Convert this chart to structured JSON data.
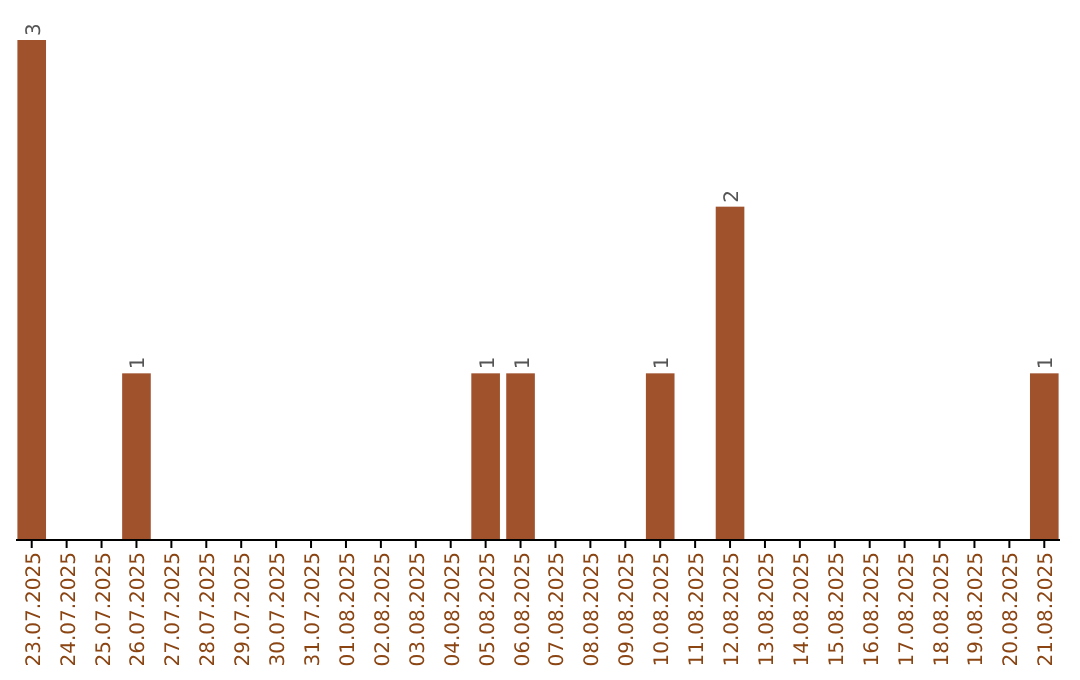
{
  "chart_data": {
    "type": "bar",
    "categories": [
      "23.07.2025",
      "24.07.2025",
      "25.07.2025",
      "26.07.2025",
      "27.07.2025",
      "28.07.2025",
      "29.07.2025",
      "30.07.2025",
      "31.07.2025",
      "01.08.2025",
      "02.08.2025",
      "03.08.2025",
      "04.08.2025",
      "05.08.2025",
      "06.08.2025",
      "07.08.2025",
      "08.08.2025",
      "09.08.2025",
      "10.08.2025",
      "11.08.2025",
      "12.08.2025",
      "13.08.2025",
      "14.08.2025",
      "15.08.2025",
      "16.08.2025",
      "17.08.2025",
      "18.08.2025",
      "19.08.2025",
      "20.08.2025",
      "21.08.2025"
    ],
    "values": [
      3,
      0,
      0,
      1,
      0,
      0,
      0,
      0,
      0,
      0,
      0,
      0,
      0,
      1,
      1,
      0,
      0,
      0,
      1,
      0,
      2,
      0,
      0,
      0,
      0,
      0,
      0,
      0,
      0,
      1
    ],
    "value_labels": [
      "3",
      null,
      null,
      "1",
      null,
      null,
      null,
      null,
      null,
      null,
      null,
      null,
      null,
      "1",
      "1",
      null,
      null,
      null,
      "1",
      null,
      "2",
      null,
      null,
      null,
      null,
      null,
      null,
      null,
      null,
      "1"
    ],
    "color": "#a0522d",
    "relative": false
  }
}
